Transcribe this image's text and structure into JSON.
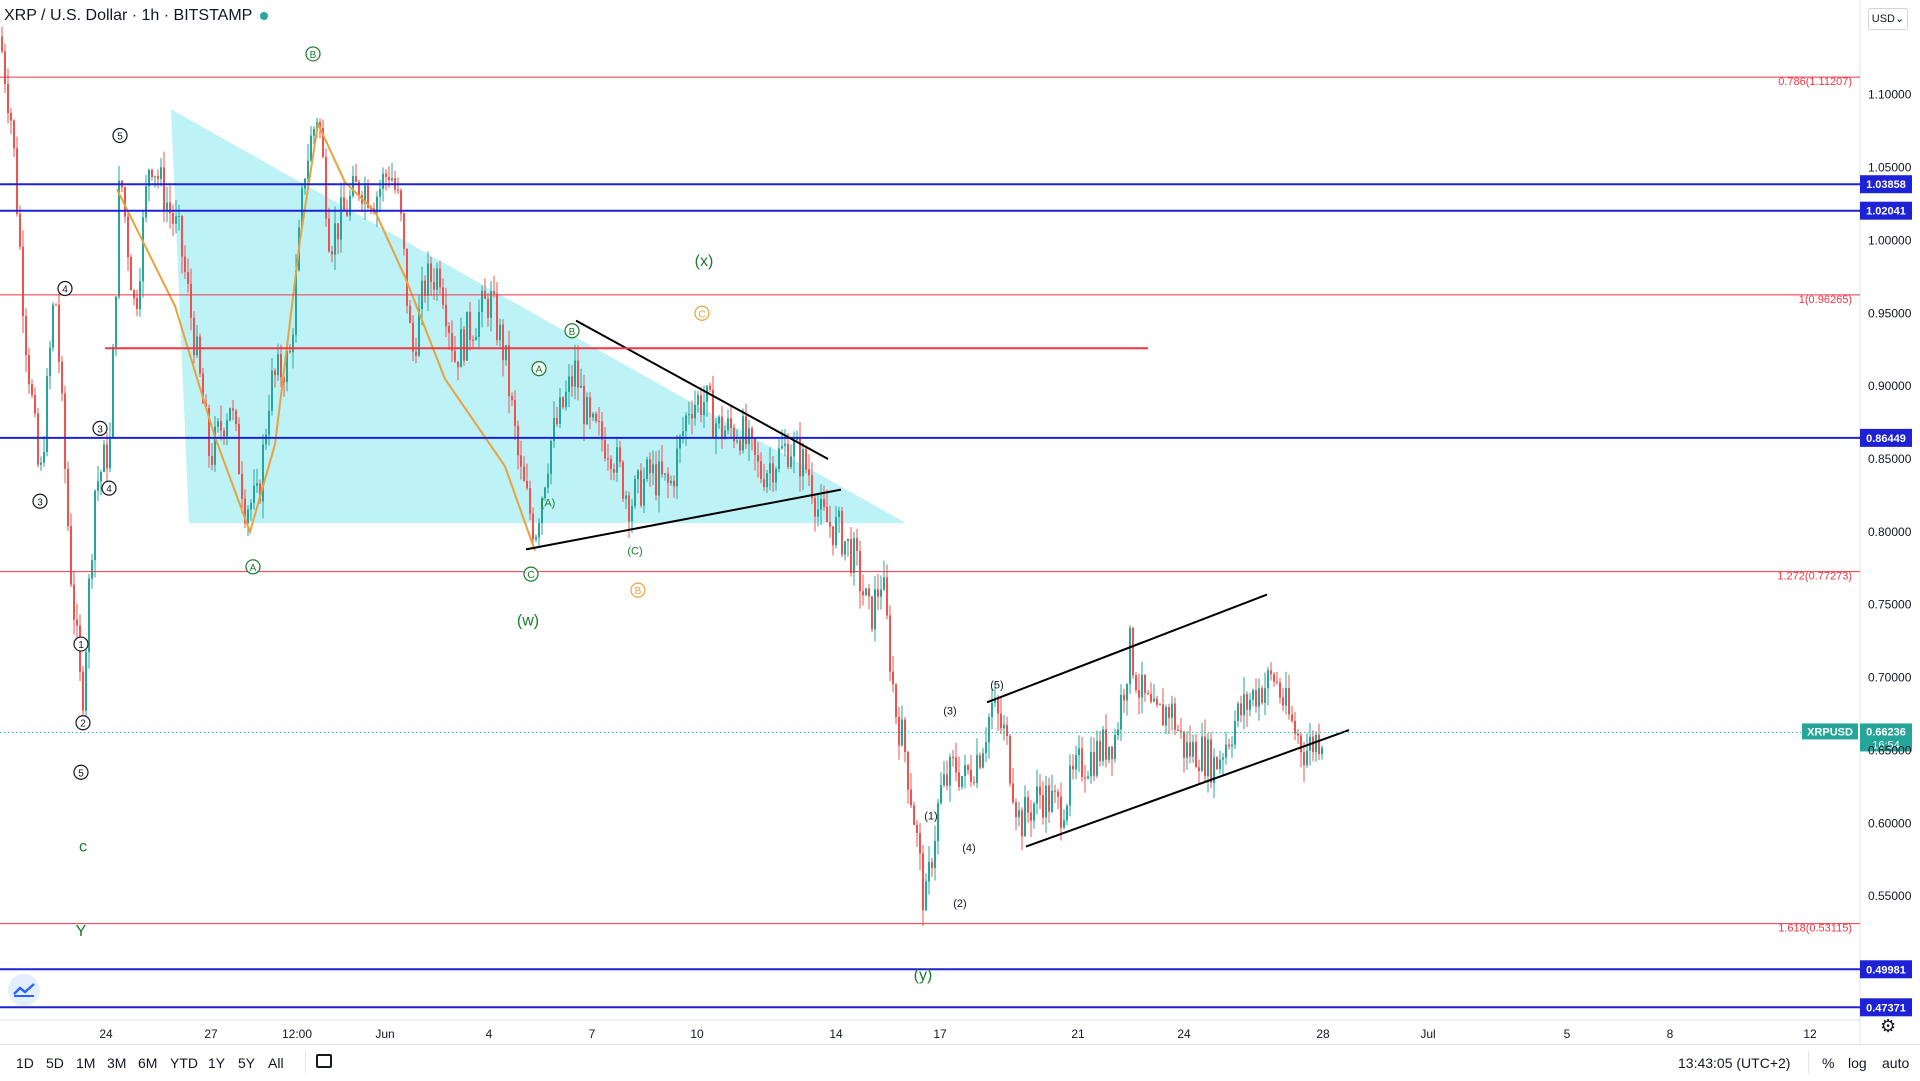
{
  "header": {
    "title": "XRP / U.S. Dollar · 1h · BITSTAMP",
    "currency": "USD"
  },
  "colors": {
    "up": "#26a69a",
    "down": "#ef5350",
    "hline_red": "#f23645",
    "hline_blue": "#1e22d6",
    "triangle": "#b2f0f5",
    "orange": "#e8a33c",
    "green_label": "#1b7a2e"
  },
  "chart_data": {
    "type": "candlestick",
    "symbol": "XRPUSD",
    "interval": "1h",
    "y_axis": {
      "ticks": [
        "1.10000",
        "1.05000",
        "1.00000",
        "0.95000",
        "0.90000",
        "0.85000",
        "0.80000",
        "0.75000",
        "0.70000",
        "0.65000",
        "0.60000",
        "0.55000"
      ],
      "ylim": [
        0.465,
        1.165
      ]
    },
    "x_axis": {
      "ticks": [
        "24",
        "27",
        "12:00",
        "Jun",
        "4",
        "7",
        "10",
        "14",
        "17",
        "21",
        "24",
        "28",
        "Jul",
        "5",
        "8",
        "12"
      ]
    },
    "price_path": [
      [
        0,
        1.14
      ],
      [
        12,
        1.08
      ],
      [
        25,
        0.94
      ],
      [
        40,
        0.83
      ],
      [
        55,
        0.97
      ],
      [
        70,
        0.78
      ],
      [
        82,
        0.68
      ],
      [
        95,
        0.83
      ],
      [
        110,
        0.86
      ],
      [
        120,
        1.05
      ],
      [
        135,
        0.95
      ],
      [
        150,
        1.06
      ],
      [
        165,
        1.03
      ],
      [
        180,
        1.0
      ],
      [
        195,
        0.93
      ],
      [
        210,
        0.85
      ],
      [
        230,
        0.89
      ],
      [
        245,
        0.82
      ],
      [
        258,
        0.82
      ],
      [
        270,
        0.9
      ],
      [
        290,
        0.92
      ],
      [
        305,
        1.05
      ],
      [
        318,
        1.09
      ],
      [
        330,
        1.0
      ],
      [
        345,
        1.02
      ],
      [
        360,
        1.04
      ],
      [
        375,
        1.03
      ],
      [
        390,
        1.05
      ],
      [
        400,
        1.02
      ],
      [
        412,
        0.92
      ],
      [
        425,
        0.97
      ],
      [
        440,
        0.98
      ],
      [
        455,
        0.92
      ],
      [
        470,
        0.94
      ],
      [
        490,
        0.96
      ],
      [
        505,
        0.92
      ],
      [
        520,
        0.84
      ],
      [
        535,
        0.8
      ],
      [
        550,
        0.86
      ],
      [
        565,
        0.89
      ],
      [
        575,
        0.91
      ],
      [
        590,
        0.87
      ],
      [
        610,
        0.86
      ],
      [
        630,
        0.82
      ],
      [
        650,
        0.84
      ],
      [
        670,
        0.83
      ],
      [
        690,
        0.89
      ],
      [
        705,
        0.89
      ],
      [
        720,
        0.87
      ],
      [
        740,
        0.87
      ],
      [
        760,
        0.84
      ],
      [
        790,
        0.86
      ],
      [
        810,
        0.84
      ],
      [
        820,
        0.81
      ],
      [
        840,
        0.8
      ],
      [
        855,
        0.78
      ],
      [
        870,
        0.74
      ],
      [
        882,
        0.77
      ],
      [
        895,
        0.68
      ],
      [
        905,
        0.65
      ],
      [
        915,
        0.6
      ],
      [
        925,
        0.54
      ],
      [
        932,
        0.58
      ],
      [
        940,
        0.62
      ],
      [
        955,
        0.64
      ],
      [
        965,
        0.63
      ],
      [
        980,
        0.65
      ],
      [
        992,
        0.68
      ],
      [
        1005,
        0.66
      ],
      [
        1020,
        0.6
      ],
      [
        1040,
        0.62
      ],
      [
        1060,
        0.61
      ],
      [
        1080,
        0.64
      ],
      [
        1100,
        0.65
      ],
      [
        1115,
        0.66
      ],
      [
        1130,
        0.72
      ],
      [
        1140,
        0.69
      ],
      [
        1155,
        0.67
      ],
      [
        1170,
        0.68
      ],
      [
        1185,
        0.65
      ],
      [
        1200,
        0.65
      ],
      [
        1215,
        0.64
      ],
      [
        1235,
        0.67
      ],
      [
        1255,
        0.69
      ],
      [
        1275,
        0.7
      ],
      [
        1290,
        0.67
      ],
      [
        1305,
        0.65
      ],
      [
        1322,
        0.662
      ]
    ],
    "horizontal_lines": [
      {
        "price": 1.11207,
        "color": "#f23645",
        "label": "0.786(1.11207)"
      },
      {
        "price": 1.03858,
        "color": "#1e22d6",
        "label": "1.03858",
        "boxed": true
      },
      {
        "price": 1.02041,
        "color": "#1e22d6",
        "label": "1.02041",
        "boxed": true
      },
      {
        "price": 0.96265,
        "color": "#f23645",
        "label": "1(0.96265)"
      },
      {
        "price": 0.86449,
        "color": "#1e22d6",
        "label": "0.86449",
        "boxed": true
      },
      {
        "price": 0.77273,
        "color": "#f23645",
        "label": "1.272(0.77273)"
      },
      {
        "price": 0.53115,
        "color": "#f23645",
        "label": "1.618(0.53115)"
      },
      {
        "price": 0.49981,
        "color": "#1e22d6",
        "label": "0.49981",
        "boxed": true
      },
      {
        "price": 0.47371,
        "color": "#1e22d6",
        "label": "0.47371",
        "boxed": true
      }
    ],
    "current_price": {
      "symbol": "XRPUSD",
      "price": "0.66236",
      "countdown": "16:54",
      "value": 0.66236
    },
    "wave_labels": [
      {
        "text": "5",
        "circled": true,
        "color": "#131722",
        "x": 120,
        "y": 1.072
      },
      {
        "text": "4",
        "circled": true,
        "color": "#131722",
        "x": 65,
        "y": 0.967
      },
      {
        "text": "3",
        "circled": true,
        "color": "#131722",
        "x": 100,
        "y": 0.871
      },
      {
        "text": "4",
        "circled": true,
        "color": "#131722",
        "x": 109,
        "y": 0.83
      },
      {
        "text": "3",
        "circled": true,
        "color": "#131722",
        "x": 40,
        "y": 0.821
      },
      {
        "text": "1",
        "circled": true,
        "color": "#131722",
        "x": 81,
        "y": 0.723
      },
      {
        "text": "2",
        "circled": true,
        "color": "#131722",
        "x": 83,
        "y": 0.669
      },
      {
        "text": "5",
        "circled": true,
        "color": "#131722",
        "x": 81,
        "y": 0.635
      },
      {
        "text": "c",
        "circled": false,
        "color": "#1b7a2e",
        "x": 83,
        "y": 0.584
      },
      {
        "text": "Y",
        "circled": false,
        "color": "#1b7a2e",
        "x": 81,
        "y": 0.526
      },
      {
        "text": "B",
        "circled": true,
        "color": "#1b7a2e",
        "x": 313,
        "y": 1.128
      },
      {
        "text": "A",
        "circled": true,
        "color": "#1b7a2e",
        "x": 253,
        "y": 0.776
      },
      {
        "text": "(x)",
        "circled": false,
        "color": "#1b7a2e",
        "x": 704,
        "y": 0.986
      },
      {
        "text": "B",
        "circled": true,
        "color": "#1b7a2e",
        "x": 572,
        "y": 0.938
      },
      {
        "text": "A",
        "circled": true,
        "color": "#1b7a2e",
        "x": 539,
        "y": 0.912
      },
      {
        "text": "(A)",
        "circled": false,
        "color": "#1b7a2e",
        "x": 548,
        "y": 0.821
      },
      {
        "text": "(C)",
        "circled": false,
        "color": "#1b7a2e",
        "x": 635,
        "y": 0.788
      },
      {
        "text": "C",
        "circled": true,
        "color": "#1b7a2e",
        "x": 531,
        "y": 0.771
      },
      {
        "text": "(w)",
        "circled": false,
        "color": "#1b7a2e",
        "x": 528,
        "y": 0.739
      },
      {
        "text": "C",
        "circled": true,
        "color": "#e8a33c",
        "x": 702,
        "y": 0.95
      },
      {
        "text": "B",
        "circled": true,
        "color": "#e8a33c",
        "x": 638,
        "y": 0.76
      },
      {
        "text": "(5)",
        "circled": false,
        "color": "#131722",
        "x": 997,
        "y": 0.696
      },
      {
        "text": "(3)",
        "circled": false,
        "color": "#131722",
        "x": 950,
        "y": 0.678
      },
      {
        "text": "(1)",
        "circled": false,
        "color": "#131722",
        "x": 931,
        "y": 0.606
      },
      {
        "text": "(4)",
        "circled": false,
        "color": "#131722",
        "x": 969,
        "y": 0.584
      },
      {
        "text": "(2)",
        "circled": false,
        "color": "#131722",
        "x": 960,
        "y": 0.546
      },
      {
        "text": "(y)",
        "circled": false,
        "color": "#1b7a2e",
        "x": 923,
        "y": 0.496
      }
    ],
    "trend_lines": [
      {
        "color": "#000000",
        "points": [
          [
            576,
            0.945
          ],
          [
            828,
            0.85
          ]
        ]
      },
      {
        "color": "#000000",
        "points": [
          [
            526,
            0.788
          ],
          [
            841,
            0.829
          ]
        ]
      },
      {
        "color": "#000000",
        "points": [
          [
            987,
            0.683
          ],
          [
            1267,
            0.757
          ]
        ]
      },
      {
        "color": "#000000",
        "points": [
          [
            1026,
            0.584
          ],
          [
            1349,
            0.664
          ]
        ]
      },
      {
        "color": "#f23645",
        "points": [
          [
            105,
            0.926
          ],
          [
            1148,
            0.926
          ]
        ]
      }
    ],
    "orange_path": [
      [
        117,
        1.035
      ],
      [
        175,
        0.955
      ],
      [
        215,
        0.865
      ],
      [
        250,
        0.8
      ],
      [
        275,
        0.86
      ],
      [
        300,
        1.0
      ],
      [
        318,
        1.08
      ],
      [
        345,
        1.04
      ],
      [
        375,
        1.02
      ],
      [
        405,
        0.975
      ],
      [
        445,
        0.905
      ],
      [
        505,
        0.845
      ],
      [
        535,
        0.787
      ]
    ],
    "triangle": [
      [
        171,
        1.09
      ],
      [
        906,
        0.806
      ],
      [
        189,
        0.806
      ]
    ]
  },
  "bottom": {
    "timeframes": [
      "1D",
      "5D",
      "1M",
      "3M",
      "6M",
      "YTD",
      "1Y",
      "5Y",
      "All"
    ],
    "clock": "13:43:05 (UTC+2)",
    "options": [
      "%",
      "log",
      "auto"
    ]
  }
}
